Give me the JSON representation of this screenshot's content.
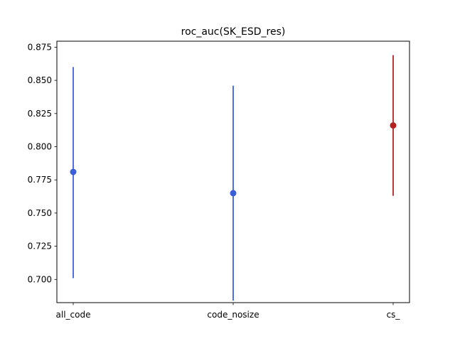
{
  "chart_data": {
    "type": "scatter",
    "title": "roc_auc(SK_ESD_res)",
    "xlabel": "",
    "ylabel": "",
    "categories": [
      "all_code",
      "code_nosize",
      "cs_"
    ],
    "points": [
      {
        "category": "all_code",
        "y": 0.781,
        "low": 0.701,
        "high": 0.86,
        "color": "#3a5fd9"
      },
      {
        "category": "code_nosize",
        "y": 0.765,
        "low": 0.684,
        "high": 0.846,
        "color": "#3a5fd9"
      },
      {
        "category": "cs_",
        "y": 0.816,
        "low": 0.763,
        "high": 0.869,
        "color": "#b22222"
      }
    ],
    "ylim": [
      0.6825,
      0.8795
    ],
    "yticks": [
      0.7,
      0.725,
      0.75,
      0.775,
      0.8,
      0.825,
      0.85,
      0.875
    ],
    "ytick_labels": [
      "0.700",
      "0.725",
      "0.750",
      "0.775",
      "0.800",
      "0.825",
      "0.850",
      "0.875"
    ],
    "grid": false,
    "legend": "none"
  }
}
